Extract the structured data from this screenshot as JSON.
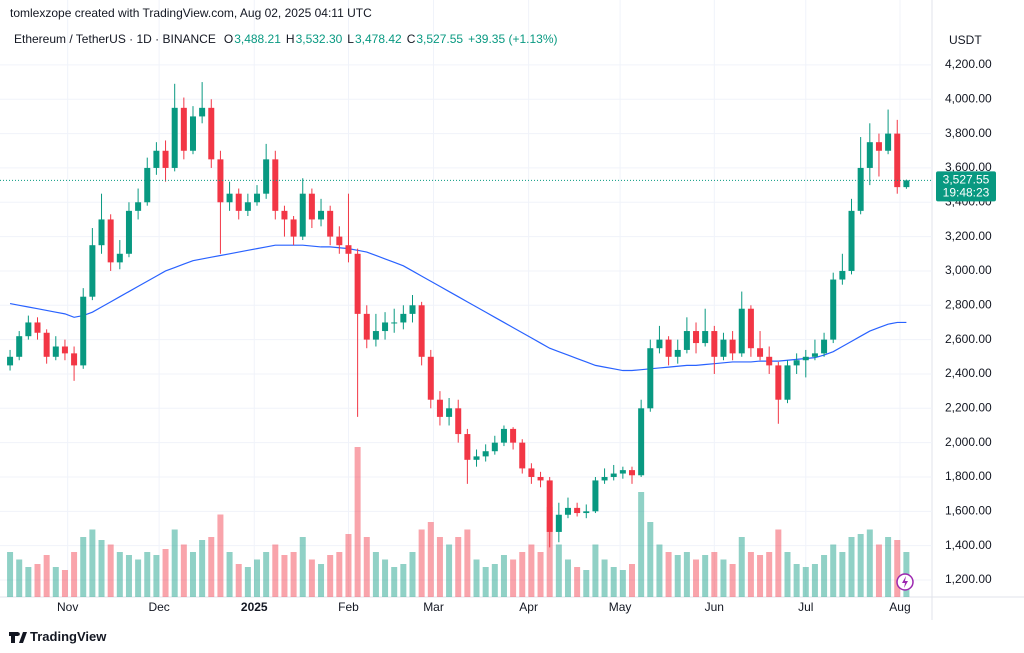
{
  "chart_data": {
    "type": "candlestick",
    "attribution": "tomlexzope created with TradingView.com, Aug 02, 2025 04:11 UTC",
    "title": "Ethereum / TetherUS · 1D · BINANCE",
    "header": [
      {
        "key": "O",
        "value": "3,488.21"
      },
      {
        "key": "H",
        "value": "3,532.30"
      },
      {
        "key": "L",
        "value": "3,478.42"
      },
      {
        "key": "C",
        "value": "3,527.55"
      }
    ],
    "change": "+39.35 (+1.13%)",
    "currency": "USDT",
    "price_tag": "3,527.55",
    "countdown": "19:48:23",
    "brand": "TradingView",
    "colors": {
      "up": "#089981",
      "down": "#f23645"
    },
    "candles": [
      [
        2450,
        2540,
        2420,
        2500
      ],
      [
        2500,
        2650,
        2480,
        2620
      ],
      [
        2620,
        2740,
        2600,
        2700
      ],
      [
        2700,
        2730,
        2600,
        2640
      ],
      [
        2640,
        2660,
        2460,
        2500
      ],
      [
        2500,
        2620,
        2480,
        2560
      ],
      [
        2560,
        2600,
        2480,
        2520
      ],
      [
        2520,
        2560,
        2360,
        2450
      ],
      [
        2450,
        2900,
        2430,
        2850
      ],
      [
        2850,
        3250,
        2830,
        3150
      ],
      [
        3150,
        3450,
        3100,
        3300
      ],
      [
        3300,
        3330,
        3000,
        3050
      ],
      [
        3050,
        3180,
        3010,
        3100
      ],
      [
        3100,
        3400,
        3080,
        3350
      ],
      [
        3350,
        3480,
        3300,
        3400
      ],
      [
        3400,
        3660,
        3380,
        3600
      ],
      [
        3600,
        3750,
        3560,
        3700
      ],
      [
        3700,
        3760,
        3520,
        3600
      ],
      [
        3600,
        4090,
        3580,
        3950
      ],
      [
        3950,
        4010,
        3650,
        3700
      ],
      [
        3700,
        3960,
        3680,
        3900
      ],
      [
        3900,
        4100,
        3860,
        3950
      ],
      [
        3950,
        4000,
        3600,
        3650
      ],
      [
        3650,
        3700,
        3100,
        3400
      ],
      [
        3400,
        3520,
        3350,
        3450
      ],
      [
        3450,
        3480,
        3300,
        3350
      ],
      [
        3350,
        3450,
        3320,
        3400
      ],
      [
        3400,
        3500,
        3380,
        3450
      ],
      [
        3450,
        3740,
        3420,
        3650
      ],
      [
        3650,
        3700,
        3300,
        3350
      ],
      [
        3350,
        3380,
        3200,
        3300
      ],
      [
        3300,
        3320,
        3150,
        3200
      ],
      [
        3200,
        3540,
        3180,
        3450
      ],
      [
        3450,
        3480,
        3250,
        3300
      ],
      [
        3300,
        3420,
        3260,
        3350
      ],
      [
        3350,
        3380,
        3150,
        3200
      ],
      [
        3200,
        3260,
        3100,
        3150
      ],
      [
        3150,
        3450,
        3050,
        3100
      ],
      [
        3100,
        3130,
        2150,
        2750
      ],
      [
        2750,
        2800,
        2550,
        2600
      ],
      [
        2600,
        2750,
        2560,
        2650
      ],
      [
        2650,
        2760,
        2600,
        2700
      ],
      [
        2700,
        2780,
        2640,
        2700
      ],
      [
        2700,
        2800,
        2660,
        2750
      ],
      [
        2750,
        2860,
        2700,
        2800
      ],
      [
        2800,
        2820,
        2450,
        2500
      ],
      [
        2500,
        2540,
        2200,
        2250
      ],
      [
        2250,
        2300,
        2100,
        2150
      ],
      [
        2150,
        2260,
        2100,
        2200
      ],
      [
        2200,
        2250,
        2000,
        2050
      ],
      [
        2050,
        2080,
        1760,
        1900
      ],
      [
        1900,
        1960,
        1860,
        1920
      ],
      [
        1920,
        1990,
        1890,
        1950
      ],
      [
        1950,
        2040,
        1930,
        2000
      ],
      [
        2000,
        2100,
        1980,
        2080
      ],
      [
        2080,
        2090,
        1960,
        2000
      ],
      [
        2000,
        2020,
        1820,
        1850
      ],
      [
        1850,
        1880,
        1760,
        1800
      ],
      [
        1800,
        1830,
        1740,
        1780
      ],
      [
        1780,
        1800,
        1390,
        1480
      ],
      [
        1480,
        1650,
        1420,
        1580
      ],
      [
        1580,
        1680,
        1560,
        1620
      ],
      [
        1620,
        1650,
        1570,
        1590
      ],
      [
        1590,
        1640,
        1560,
        1600
      ],
      [
        1600,
        1800,
        1590,
        1780
      ],
      [
        1780,
        1850,
        1760,
        1800
      ],
      [
        1800,
        1870,
        1780,
        1820
      ],
      [
        1820,
        1860,
        1790,
        1840
      ],
      [
        1840,
        1860,
        1760,
        1810
      ],
      [
        1810,
        2250,
        1800,
        2200
      ],
      [
        2200,
        2600,
        2180,
        2550
      ],
      [
        2550,
        2680,
        2520,
        2600
      ],
      [
        2600,
        2620,
        2450,
        2500
      ],
      [
        2500,
        2600,
        2460,
        2540
      ],
      [
        2540,
        2730,
        2520,
        2650
      ],
      [
        2650,
        2700,
        2520,
        2580
      ],
      [
        2580,
        2780,
        2560,
        2650
      ],
      [
        2650,
        2680,
        2400,
        2500
      ],
      [
        2500,
        2640,
        2480,
        2600
      ],
      [
        2600,
        2650,
        2480,
        2520
      ],
      [
        2520,
        2880,
        2500,
        2780
      ],
      [
        2780,
        2800,
        2500,
        2550
      ],
      [
        2550,
        2650,
        2480,
        2500
      ],
      [
        2500,
        2560,
        2400,
        2450
      ],
      [
        2450,
        2470,
        2110,
        2250
      ],
      [
        2250,
        2480,
        2230,
        2450
      ],
      [
        2450,
        2520,
        2400,
        2480
      ],
      [
        2480,
        2540,
        2380,
        2500
      ],
      [
        2500,
        2600,
        2480,
        2520
      ],
      [
        2520,
        2640,
        2500,
        2600
      ],
      [
        2600,
        2990,
        2580,
        2950
      ],
      [
        2950,
        3100,
        2920,
        3000
      ],
      [
        3000,
        3420,
        2980,
        3350
      ],
      [
        3350,
        3780,
        3330,
        3600
      ],
      [
        3600,
        3860,
        3500,
        3750
      ],
      [
        3750,
        3800,
        3550,
        3700
      ],
      [
        3700,
        3940,
        3680,
        3800
      ],
      [
        3800,
        3880,
        3450,
        3488.21
      ],
      [
        3488.21,
        3532.3,
        3478.42,
        3527.55
      ]
    ],
    "volume": {
      "ylim": [
        0,
        100
      ],
      "values": [
        30,
        25,
        20,
        22,
        28,
        20,
        18,
        30,
        40,
        45,
        38,
        35,
        30,
        28,
        25,
        30,
        28,
        32,
        45,
        35,
        30,
        38,
        40,
        55,
        30,
        22,
        20,
        25,
        30,
        35,
        28,
        30,
        40,
        25,
        22,
        28,
        30,
        42,
        100,
        40,
        30,
        25,
        20,
        22,
        30,
        45,
        50,
        40,
        35,
        40,
        45,
        25,
        20,
        22,
        28,
        25,
        30,
        35,
        30,
        60,
        35,
        25,
        20,
        18,
        35,
        25,
        20,
        18,
        22,
        70,
        50,
        35,
        30,
        28,
        30,
        25,
        28,
        30,
        25,
        22,
        40,
        30,
        28,
        30,
        45,
        30,
        22,
        20,
        22,
        28,
        35,
        30,
        40,
        42,
        45,
        35,
        40,
        38,
        30
      ]
    },
    "moving_average": {
      "color": "#2962ff",
      "values": [
        2810,
        2800,
        2790,
        2780,
        2770,
        2760,
        2750,
        2730,
        2740,
        2760,
        2790,
        2820,
        2850,
        2880,
        2910,
        2940,
        2970,
        3000,
        3020,
        3040,
        3060,
        3070,
        3080,
        3090,
        3100,
        3110,
        3120,
        3130,
        3140,
        3150,
        3150,
        3150,
        3150,
        3145,
        3140,
        3140,
        3135,
        3130,
        3120,
        3110,
        3090,
        3070,
        3050,
        3030,
        3000,
        2970,
        2940,
        2910,
        2880,
        2850,
        2820,
        2790,
        2760,
        2730,
        2700,
        2670,
        2640,
        2610,
        2580,
        2550,
        2530,
        2510,
        2490,
        2470,
        2450,
        2440,
        2430,
        2420,
        2420,
        2425,
        2430,
        2435,
        2440,
        2445,
        2450,
        2450,
        2455,
        2460,
        2465,
        2470,
        2470,
        2470,
        2475,
        2475,
        2475,
        2480,
        2485,
        2490,
        2495,
        2510,
        2530,
        2560,
        2590,
        2620,
        2650,
        2670,
        2690,
        2700,
        2700
      ]
    },
    "xlim": [
      -1.1,
      100.8
    ],
    "xticks": [
      {
        "value": 6.3,
        "label": "Nov"
      },
      {
        "value": 16.3,
        "label": "Dec"
      },
      {
        "value": 26.7,
        "label": "2025"
      },
      {
        "value": 37,
        "label": "Feb"
      },
      {
        "value": 46.3,
        "label": "Mar"
      },
      {
        "value": 56.7,
        "label": "Apr"
      },
      {
        "value": 66.7,
        "label": "May"
      },
      {
        "value": 77,
        "label": "Jun"
      },
      {
        "value": 87,
        "label": "Jul"
      },
      {
        "value": 97.3,
        "label": "Aug"
      }
    ],
    "ylim": [
      1101,
      4415
    ],
    "yticks": [
      {
        "value": 1200,
        "label": "1,200.00"
      },
      {
        "value": 1400,
        "label": "1,400.00"
      },
      {
        "value": 1600,
        "label": "1,600.00"
      },
      {
        "value": 1800,
        "label": "1,800.00"
      },
      {
        "value": 2000,
        "label": "2,000.00"
      },
      {
        "value": 2200,
        "label": "2,200.00"
      },
      {
        "value": 2400,
        "label": "2,400.00"
      },
      {
        "value": 2600,
        "label": "2,600.00"
      },
      {
        "value": 2800,
        "label": "2,800.00"
      },
      {
        "value": 3000,
        "label": "3,000.00"
      },
      {
        "value": 3200,
        "label": "3,200.00"
      },
      {
        "value": 3400,
        "label": "3,400.00"
      },
      {
        "value": 3600,
        "label": "3,600.00"
      },
      {
        "value": 3800,
        "label": "3,800.00"
      },
      {
        "value": 4000,
        "label": "4,000.00"
      },
      {
        "value": 4200,
        "label": "4,200.00"
      }
    ],
    "grid": true
  }
}
